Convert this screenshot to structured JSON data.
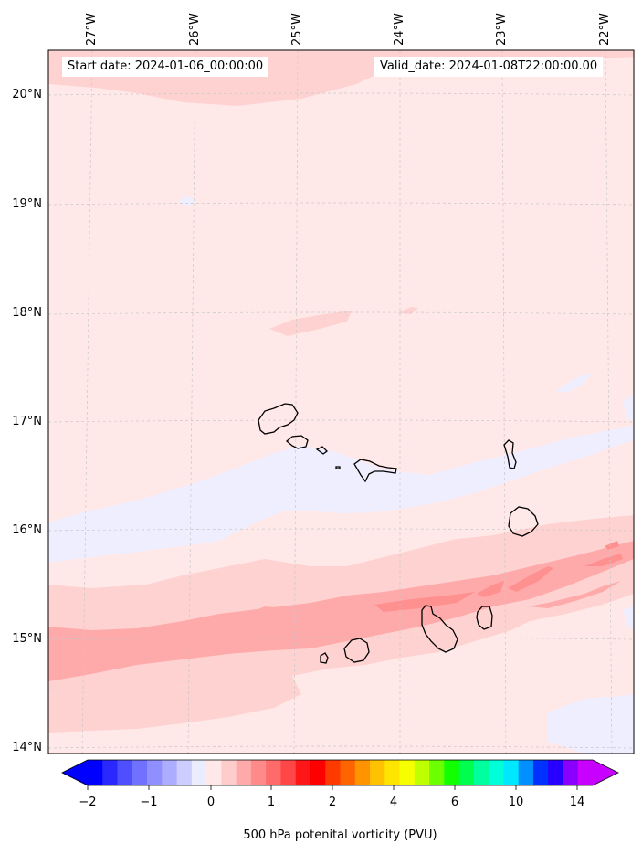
{
  "map": {
    "lon_labels": [
      "27°W",
      "26°W",
      "25°W",
      "24°W",
      "23°W",
      "22°W"
    ],
    "lat_labels": [
      "20°N",
      "19°N",
      "18°N",
      "17°N",
      "16°N",
      "15°N",
      "14°N"
    ],
    "start_date": "Start date: 2024-01-06_00:00:00",
    "valid_date": "Valid_date: 2024-01-08T22:00:00.00",
    "colors": {
      "background_field": "#ffe8e8",
      "negative_field": "#efeeff",
      "level_1": "#ffd2d2",
      "level_2": "#ffaaaa",
      "coastline": "#000000",
      "gridline": "#c8c8c8"
    }
  },
  "colorbar": {
    "tick_labels": [
      "−2",
      "−1",
      "0",
      "1",
      "2",
      "4",
      "6",
      "10",
      "14"
    ],
    "label": "500 hPa potenital vorticity (PVU)",
    "colors": [
      "#0000ff",
      "#2828ff",
      "#4f4fff",
      "#7171ff",
      "#8f8fff",
      "#adadff",
      "#cdcdff",
      "#ececff",
      "#ffe8e8",
      "#ffcccc",
      "#ffaaaa",
      "#ff8a8a",
      "#ff6a6a",
      "#ff4747",
      "#ff1616",
      "#ff0000",
      "#ff3a00",
      "#ff6400",
      "#ff9400",
      "#ffc200",
      "#ffe400",
      "#f6ff00",
      "#bfff00",
      "#6cff00",
      "#12ff00",
      "#00ff4d",
      "#00ff9e",
      "#00ffd8",
      "#00e8ff",
      "#0090ff",
      "#0032ff",
      "#2800ff",
      "#8a00ff",
      "#c800ff"
    ]
  }
}
